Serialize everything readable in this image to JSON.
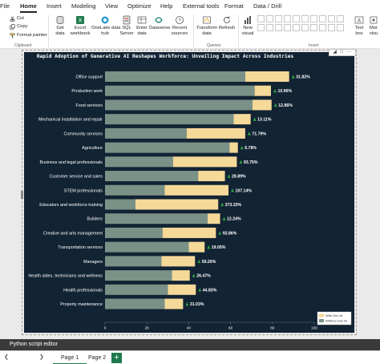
{
  "menu": {
    "items": [
      "File",
      "Home",
      "Insert",
      "Modeling",
      "View",
      "Optimize",
      "Help",
      "External tools",
      "Format",
      "Data / Drill"
    ],
    "active": "Home"
  },
  "ribbon": {
    "clipboard": {
      "cut": "Cut",
      "copy": "Copy",
      "format_painter": "Format painter",
      "label": "Clipboard"
    },
    "data": {
      "get_data": [
        "Get",
        "data"
      ],
      "excel": [
        "Excel",
        "workbook"
      ],
      "onelake": [
        "OneLake data",
        "hub"
      ],
      "sql": [
        "SQL",
        "Server"
      ],
      "enter_data": [
        "Enter",
        "data"
      ],
      "dataverse": [
        "Dataverse"
      ],
      "recent": [
        "Recent",
        "sources"
      ]
    },
    "queries": {
      "transform": [
        "Transform",
        "data"
      ],
      "refresh": [
        "Refresh"
      ],
      "label": "Queries"
    },
    "insert": {
      "new_visual": [
        "New",
        "visual"
      ],
      "text_box": [
        "Text",
        "box"
      ],
      "more": [
        "Mor",
        "visu"
      ],
      "label": "Insert"
    }
  },
  "chart_data": {
    "type": "bar",
    "stacked": true,
    "orientation": "horizontal",
    "title": "Rapid Adoption of Generative AI Reshapes Workforce: Unveiling Impact Across Industries",
    "categories": [
      "Office support",
      "Production work",
      "Food services",
      "Mechanical installation and repair",
      "Community services",
      "Agriculture",
      "Business and legal professionals",
      "Customer service and sales",
      "STEM professionals",
      "Educators and workforce training",
      "Builders",
      "Creative and arts management",
      "Transportation services",
      "Managers",
      "Health aides, technicians and wellness",
      "Health professionals",
      "Property maintenance"
    ],
    "series": [
      {
        "name": "Without Gen AI",
        "color": "#7a9187",
        "values": [
          67.0,
          71.5,
          70.5,
          61.5,
          39.0,
          59.5,
          32.5,
          44.5,
          28.5,
          14.5,
          49.0,
          27.5,
          40.0,
          27.0,
          32.0,
          30.0,
          28.5
        ]
      },
      {
        "name": "With Gen AI",
        "color": "#f5d998",
        "values": [
          21.0,
          7.8,
          9.1,
          8.1,
          28.0,
          4.0,
          30.5,
          12.8,
          30.5,
          39.6,
          6.0,
          25.5,
          7.6,
          16.0,
          8.5,
          13.4,
          8.8
        ]
      }
    ],
    "labels": [
      "31.82%",
      "10.96%",
      "12.86%",
      "13.11%",
      "71.79%",
      "6.78%",
      "93.75%",
      "28.89%",
      "107.14%",
      "273.33%",
      "12.24%",
      "92.86%",
      "19.05%",
      "59.26%",
      "26.47%",
      "44.83%",
      "31.03%"
    ],
    "xlim": [
      0,
      100
    ],
    "xticks": [
      "0",
      "20",
      "40",
      "60",
      "80",
      "100"
    ],
    "legend": {
      "placement": "bottom-right",
      "entries": [
        "With Gen AI",
        "Without Gen AI"
      ]
    },
    "colors": {
      "background": "#122334",
      "up_arrow": "#2e9e3e",
      "text": "#ffffff"
    }
  },
  "python_editor": {
    "label": "Python script editor"
  },
  "pages": {
    "tabs": [
      "Page 1",
      "Page 2"
    ],
    "active": "Page 1",
    "add": "+"
  }
}
